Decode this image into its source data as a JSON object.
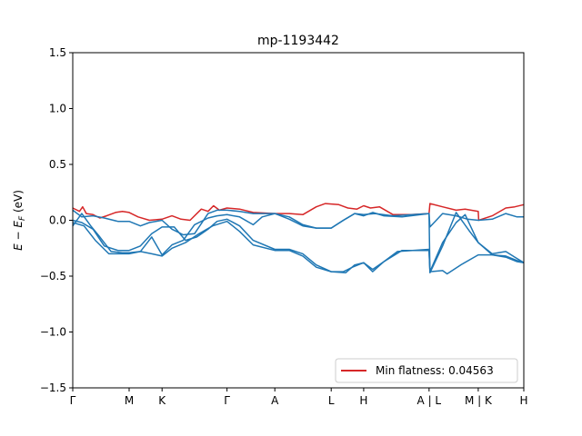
{
  "chart_data": {
    "type": "line",
    "title": "mp-1193442",
    "xlabel": "",
    "ylabel": "E − E_F (eV)",
    "ylim": [
      -1.5,
      1.5
    ],
    "xlim": [
      0,
      1
    ],
    "yticks": [
      -1.5,
      -1.0,
      -0.5,
      0.0,
      0.5,
      1.0,
      1.5
    ],
    "ytick_labels": [
      "−1.5",
      "−1.0",
      "−0.5",
      "0.0",
      "0.5",
      "1.0",
      "1.5"
    ],
    "xticks": [
      {
        "x": 0.0,
        "label": "Γ"
      },
      {
        "x": 0.125,
        "label": "M"
      },
      {
        "x": 0.198,
        "label": "K"
      },
      {
        "x": 0.342,
        "label": "Γ"
      },
      {
        "x": 0.448,
        "label": "A"
      },
      {
        "x": 0.573,
        "label": "L"
      },
      {
        "x": 0.645,
        "label": "H"
      },
      {
        "x": 0.79,
        "label": "A | L"
      },
      {
        "x": 0.899,
        "label": "M | K"
      },
      {
        "x": 1.0,
        "label": "H"
      }
    ],
    "grid": false,
    "legend": {
      "position": "lower-right",
      "entries": [
        {
          "label": "Min flatness: 0.04563",
          "color": "#d62728"
        }
      ]
    },
    "colors": {
      "flat_band": "#d62728",
      "bands": "#1f77b4"
    },
    "series": [
      {
        "color": "#d62728",
        "points": [
          [
            0.0,
            0.11
          ],
          [
            0.015,
            0.08
          ],
          [
            0.022,
            0.12
          ],
          [
            0.03,
            0.06
          ],
          [
            0.045,
            0.05
          ],
          [
            0.06,
            0.02
          ],
          [
            0.075,
            0.04
          ],
          [
            0.095,
            0.07
          ],
          [
            0.11,
            0.08
          ],
          [
            0.125,
            0.07
          ],
          [
            0.145,
            0.03
          ],
          [
            0.17,
            0.0
          ],
          [
            0.198,
            0.01
          ],
          [
            0.22,
            0.04
          ],
          [
            0.24,
            0.01
          ],
          [
            0.26,
            0.0
          ],
          [
            0.285,
            0.1
          ],
          [
            0.3,
            0.08
          ],
          [
            0.312,
            0.13
          ],
          [
            0.325,
            0.09
          ],
          [
            0.342,
            0.11
          ],
          [
            0.37,
            0.1
          ],
          [
            0.4,
            0.07
          ],
          [
            0.448,
            0.06
          ],
          [
            0.48,
            0.06
          ],
          [
            0.51,
            0.05
          ],
          [
            0.54,
            0.12
          ],
          [
            0.56,
            0.15
          ],
          [
            0.59,
            0.14
          ],
          [
            0.61,
            0.11
          ],
          [
            0.63,
            0.1
          ],
          [
            0.645,
            0.13
          ],
          [
            0.66,
            0.11
          ],
          [
            0.68,
            0.12
          ],
          [
            0.71,
            0.05
          ],
          [
            0.75,
            0.05
          ],
          [
            0.79,
            0.06
          ],
          [
            0.792,
            0.15
          ],
          [
            0.82,
            0.12
          ],
          [
            0.85,
            0.09
          ],
          [
            0.87,
            0.1
          ],
          [
            0.899,
            0.08
          ],
          [
            0.9,
            0.0
          ],
          [
            0.93,
            0.04
          ],
          [
            0.96,
            0.11
          ],
          [
            0.98,
            0.12
          ],
          [
            1.0,
            0.14
          ]
        ]
      },
      {
        "color": "#1f77b4",
        "points": [
          [
            0.0,
            0.09
          ],
          [
            0.02,
            0.03
          ],
          [
            0.045,
            0.04
          ],
          [
            0.07,
            0.02
          ],
          [
            0.1,
            -0.01
          ],
          [
            0.125,
            -0.01
          ],
          [
            0.15,
            -0.05
          ],
          [
            0.17,
            -0.02
          ],
          [
            0.198,
            0.0
          ],
          [
            0.22,
            -0.08
          ],
          [
            0.245,
            -0.13
          ],
          [
            0.27,
            -0.12
          ],
          [
            0.3,
            0.06
          ],
          [
            0.32,
            0.09
          ],
          [
            0.342,
            0.09
          ],
          [
            0.37,
            0.08
          ],
          [
            0.4,
            0.06
          ],
          [
            0.448,
            0.06
          ],
          [
            0.48,
            0.03
          ],
          [
            0.51,
            -0.04
          ],
          [
            0.54,
            -0.07
          ],
          [
            0.573,
            -0.07
          ],
          [
            0.6,
            0.0
          ],
          [
            0.625,
            0.06
          ],
          [
            0.645,
            0.04
          ],
          [
            0.665,
            0.07
          ],
          [
            0.69,
            0.04
          ],
          [
            0.73,
            0.03
          ],
          [
            0.79,
            0.06
          ],
          [
            0.792,
            -0.06
          ],
          [
            0.82,
            0.06
          ],
          [
            0.85,
            0.04
          ],
          [
            0.875,
            0.01
          ],
          [
            0.899,
            0.0
          ],
          [
            0.93,
            0.01
          ],
          [
            0.96,
            0.06
          ],
          [
            0.985,
            0.03
          ],
          [
            1.0,
            0.03
          ]
        ]
      },
      {
        "color": "#1f77b4",
        "points": [
          [
            0.0,
            -0.05
          ],
          [
            0.02,
            0.06
          ],
          [
            0.04,
            -0.05
          ],
          [
            0.06,
            -0.15
          ],
          [
            0.085,
            -0.28
          ],
          [
            0.11,
            -0.29
          ],
          [
            0.125,
            -0.29
          ],
          [
            0.15,
            -0.28
          ],
          [
            0.175,
            -0.15
          ],
          [
            0.198,
            -0.31
          ],
          [
            0.22,
            -0.22
          ],
          [
            0.245,
            -0.18
          ],
          [
            0.27,
            -0.04
          ],
          [
            0.3,
            0.02
          ],
          [
            0.32,
            0.04
          ],
          [
            0.342,
            0.05
          ],
          [
            0.37,
            0.03
          ],
          [
            0.4,
            -0.04
          ],
          [
            0.42,
            0.03
          ],
          [
            0.448,
            0.06
          ],
          [
            0.48,
            0.01
          ],
          [
            0.51,
            -0.05
          ],
          [
            0.54,
            -0.07
          ],
          [
            0.573,
            -0.07
          ],
          [
            0.6,
            0.0
          ],
          [
            0.625,
            0.06
          ],
          [
            0.645,
            0.05
          ],
          [
            0.67,
            0.06
          ],
          [
            0.71,
            0.04
          ],
          [
            0.79,
            0.06
          ],
          [
            0.792,
            -0.47
          ],
          [
            0.82,
            -0.23
          ],
          [
            0.85,
            0.07
          ],
          [
            0.88,
            -0.1
          ],
          [
            0.899,
            -0.2
          ],
          [
            0.93,
            -0.3
          ],
          [
            0.96,
            -0.28
          ],
          [
            0.98,
            -0.33
          ],
          [
            1.0,
            -0.38
          ]
        ]
      },
      {
        "color": "#1f77b4",
        "points": [
          [
            0.0,
            0.0
          ],
          [
            0.02,
            -0.02
          ],
          [
            0.045,
            -0.08
          ],
          [
            0.07,
            -0.23
          ],
          [
            0.1,
            -0.27
          ],
          [
            0.125,
            -0.27
          ],
          [
            0.15,
            -0.23
          ],
          [
            0.175,
            -0.12
          ],
          [
            0.198,
            -0.06
          ],
          [
            0.225,
            -0.06
          ],
          [
            0.25,
            -0.18
          ],
          [
            0.275,
            -0.15
          ],
          [
            0.3,
            -0.08
          ],
          [
            0.32,
            -0.01
          ],
          [
            0.342,
            0.01
          ],
          [
            0.37,
            -0.05
          ],
          [
            0.4,
            -0.18
          ],
          [
            0.448,
            -0.26
          ],
          [
            0.48,
            -0.26
          ],
          [
            0.51,
            -0.3
          ],
          [
            0.54,
            -0.4
          ],
          [
            0.573,
            -0.46
          ],
          [
            0.6,
            -0.46
          ],
          [
            0.62,
            -0.42
          ],
          [
            0.645,
            -0.38
          ],
          [
            0.665,
            -0.44
          ],
          [
            0.69,
            -0.37
          ],
          [
            0.72,
            -0.28
          ],
          [
            0.79,
            -0.26
          ],
          [
            0.792,
            -0.46
          ],
          [
            0.82,
            -0.2
          ],
          [
            0.85,
            -0.02
          ],
          [
            0.87,
            0.05
          ],
          [
            0.899,
            -0.2
          ],
          [
            0.93,
            -0.31
          ],
          [
            0.96,
            -0.32
          ],
          [
            0.985,
            -0.36
          ],
          [
            1.0,
            -0.38
          ]
        ]
      },
      {
        "color": "#1f77b4",
        "points": [
          [
            0.0,
            -0.02
          ],
          [
            0.025,
            -0.05
          ],
          [
            0.05,
            -0.18
          ],
          [
            0.08,
            -0.3
          ],
          [
            0.11,
            -0.3
          ],
          [
            0.125,
            -0.3
          ],
          [
            0.15,
            -0.28
          ],
          [
            0.175,
            -0.3
          ],
          [
            0.198,
            -0.32
          ],
          [
            0.22,
            -0.25
          ],
          [
            0.25,
            -0.2
          ],
          [
            0.28,
            -0.12
          ],
          [
            0.31,
            -0.05
          ],
          [
            0.342,
            -0.01
          ],
          [
            0.37,
            -0.1
          ],
          [
            0.4,
            -0.22
          ],
          [
            0.448,
            -0.27
          ],
          [
            0.48,
            -0.27
          ],
          [
            0.51,
            -0.32
          ],
          [
            0.54,
            -0.42
          ],
          [
            0.573,
            -0.46
          ],
          [
            0.605,
            -0.47
          ],
          [
            0.625,
            -0.4
          ],
          [
            0.645,
            -0.38
          ],
          [
            0.665,
            -0.46
          ],
          [
            0.69,
            -0.37
          ],
          [
            0.73,
            -0.27
          ],
          [
            0.79,
            -0.27
          ],
          [
            0.792,
            -0.46
          ],
          [
            0.82,
            -0.45
          ],
          [
            0.83,
            -0.48
          ],
          [
            0.86,
            -0.4
          ],
          [
            0.899,
            -0.31
          ],
          [
            0.93,
            -0.31
          ],
          [
            0.96,
            -0.33
          ],
          [
            0.985,
            -0.37
          ],
          [
            1.0,
            -0.38
          ]
        ]
      }
    ]
  }
}
